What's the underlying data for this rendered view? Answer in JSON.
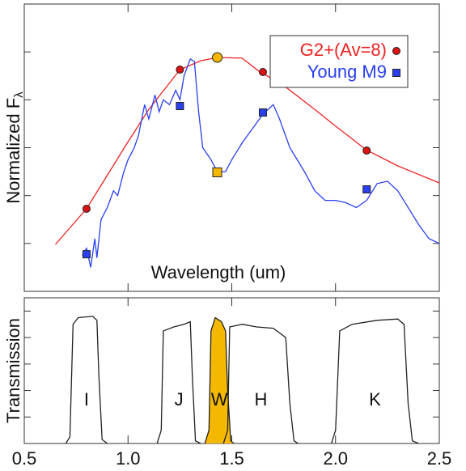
{
  "chart_data": [
    {
      "type": "line",
      "xlabel": "Wavelength (um)",
      "ylabel": "Normalized F",
      "ylabel_sub": "λ",
      "xlim": [
        0.5,
        2.5
      ],
      "ylim": [
        0,
        1.2
      ],
      "yticks": [
        0.2,
        0.4,
        0.6,
        0.8,
        1.0
      ],
      "legend": "upper right",
      "series": [
        {
          "name": "G2+(Av=8)",
          "color": "#ee2222",
          "marker": "circle",
          "x": [
            0.65,
            0.8,
            1.0,
            1.1,
            1.25,
            1.35,
            1.43,
            1.55,
            1.63,
            1.75,
            1.9,
            2.0,
            2.15,
            2.3,
            2.5
          ],
          "values": [
            0.196,
            0.345,
            0.625,
            0.76,
            0.926,
            0.963,
            0.977,
            0.974,
            0.92,
            0.86,
            0.76,
            0.69,
            0.59,
            0.524,
            0.453
          ],
          "marker_x": [
            0.8,
            1.25,
            1.43,
            1.65,
            2.15
          ],
          "marker_values": [
            0.345,
            0.926,
            0.977,
            0.916,
            0.588
          ],
          "marker_colors": [
            "#dd1111",
            "#dd1111",
            "#f5b800",
            "#dd1111",
            "#dd1111"
          ]
        },
        {
          "name": "Young M9",
          "color": "#2a3ff0",
          "marker": "square",
          "x": [
            0.78,
            0.8,
            0.82,
            0.84,
            0.85,
            0.87,
            0.9,
            0.93,
            0.95,
            0.98,
            1.0,
            1.03,
            1.05,
            1.08,
            1.1,
            1.13,
            1.15,
            1.17,
            1.2,
            1.23,
            1.25,
            1.27,
            1.3,
            1.32,
            1.34,
            1.36,
            1.4,
            1.43,
            1.47,
            1.5,
            1.55,
            1.6,
            1.65,
            1.7,
            1.73,
            1.78,
            1.85,
            1.9,
            1.95,
            2.0,
            2.05,
            2.1,
            2.15,
            2.2,
            2.25,
            2.3,
            2.35,
            2.4,
            2.45,
            2.5
          ],
          "values": [
            0.15,
            0.18,
            0.1,
            0.22,
            0.14,
            0.3,
            0.35,
            0.42,
            0.4,
            0.5,
            0.55,
            0.6,
            0.65,
            0.78,
            0.72,
            0.82,
            0.75,
            0.8,
            0.78,
            0.84,
            0.8,
            0.9,
            0.97,
            0.96,
            0.75,
            0.6,
            0.55,
            0.5,
            0.5,
            0.55,
            0.62,
            0.68,
            0.74,
            0.78,
            0.72,
            0.6,
            0.5,
            0.42,
            0.38,
            0.38,
            0.37,
            0.35,
            0.38,
            0.45,
            0.46,
            0.42,
            0.35,
            0.28,
            0.22,
            0.2
          ],
          "marker_x": [
            0.8,
            1.25,
            1.43,
            1.65,
            2.15
          ],
          "marker_values": [
            0.155,
            0.774,
            0.497,
            0.747,
            0.426
          ],
          "marker_colors": [
            "#2a3ff0",
            "#2a3ff0",
            "#f5b800",
            "#2a3ff0",
            "#2a3ff0"
          ]
        }
      ]
    },
    {
      "type": "line",
      "ylabel": "Transmission",
      "xlim": [
        0.5,
        2.5
      ],
      "xticks": [
        0.5,
        {
          "value": 1,
          "label": "1.0"
        },
        1.5,
        {
          "value": 2,
          "label": "2.0"
        },
        2.5
      ],
      "ylim": [
        0,
        1.1
      ],
      "yticks": [
        0.2,
        0.4,
        0.6,
        0.8,
        1.0
      ],
      "series": [
        {
          "name": "I",
          "color": "#222222",
          "fill": null,
          "x": [
            0.7,
            0.72,
            0.735,
            0.76,
            0.83,
            0.85,
            0.86,
            0.875,
            0.9
          ],
          "values": [
            0,
            0.05,
            0.9,
            0.95,
            0.96,
            0.93,
            0.5,
            0.03,
            0
          ]
        },
        {
          "name": "J",
          "color": "#222222",
          "fill": null,
          "x": [
            1.14,
            1.16,
            1.17,
            1.22,
            1.27,
            1.3,
            1.31,
            1.325,
            1.35
          ],
          "values": [
            0,
            0.1,
            0.85,
            0.88,
            0.9,
            0.92,
            0.5,
            0.02,
            0
          ]
        },
        {
          "name": "W",
          "color": "#222222",
          "fill": "#f5b800",
          "x": [
            1.37,
            1.39,
            1.4,
            1.42,
            1.45,
            1.47,
            1.48,
            1.495,
            1.51
          ],
          "values": [
            0,
            0.1,
            0.85,
            0.95,
            0.92,
            0.85,
            0.4,
            0.02,
            0
          ]
        },
        {
          "name": "H",
          "color": "#222222",
          "fill": null,
          "x": [
            1.46,
            1.48,
            1.49,
            1.55,
            1.62,
            1.7,
            1.76,
            1.78,
            1.8,
            1.82
          ],
          "values": [
            0,
            0.1,
            0.88,
            0.9,
            0.88,
            0.87,
            0.8,
            0.3,
            0.02,
            0
          ]
        },
        {
          "name": "K",
          "color": "#222222",
          "fill": null,
          "x": [
            1.98,
            2.0,
            2.02,
            2.08,
            2.2,
            2.3,
            2.33,
            2.35,
            2.37,
            2.4
          ],
          "values": [
            0,
            0.1,
            0.85,
            0.9,
            0.93,
            0.94,
            0.9,
            0.3,
            0.02,
            0
          ]
        }
      ]
    }
  ]
}
